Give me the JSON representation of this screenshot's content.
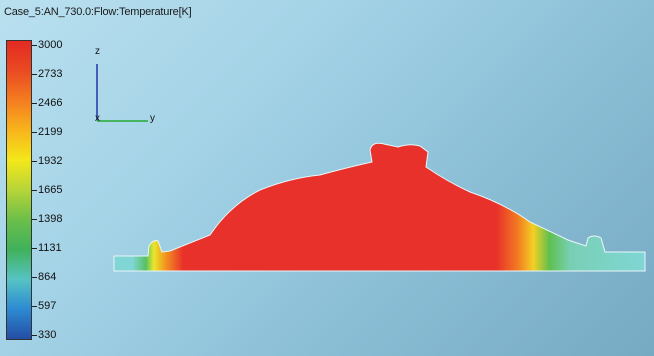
{
  "title": "Case_5:AN_730.0:Flow:Temperature[K]",
  "legend": {
    "labels": [
      "3000",
      "2733",
      "2466",
      "2199",
      "1932",
      "1665",
      "1398",
      "1131",
      "864",
      "597",
      "330"
    ],
    "colors": [
      "#e32a22",
      "#ea4a22",
      "#f47d20",
      "#f8b41c",
      "#f3e81a",
      "#b6d438",
      "#6cbf4a",
      "#3fb15b",
      "#56c3c3",
      "#2d8ad2",
      "#234ea4"
    ]
  },
  "triad": {
    "z_label": "z",
    "y_label": "y",
    "x_label": "x"
  },
  "colors": {
    "hot": "#e8312a",
    "cold": "#7fd6d4",
    "axis_z": "#2233aa",
    "axis_y": "#22aa33"
  }
}
